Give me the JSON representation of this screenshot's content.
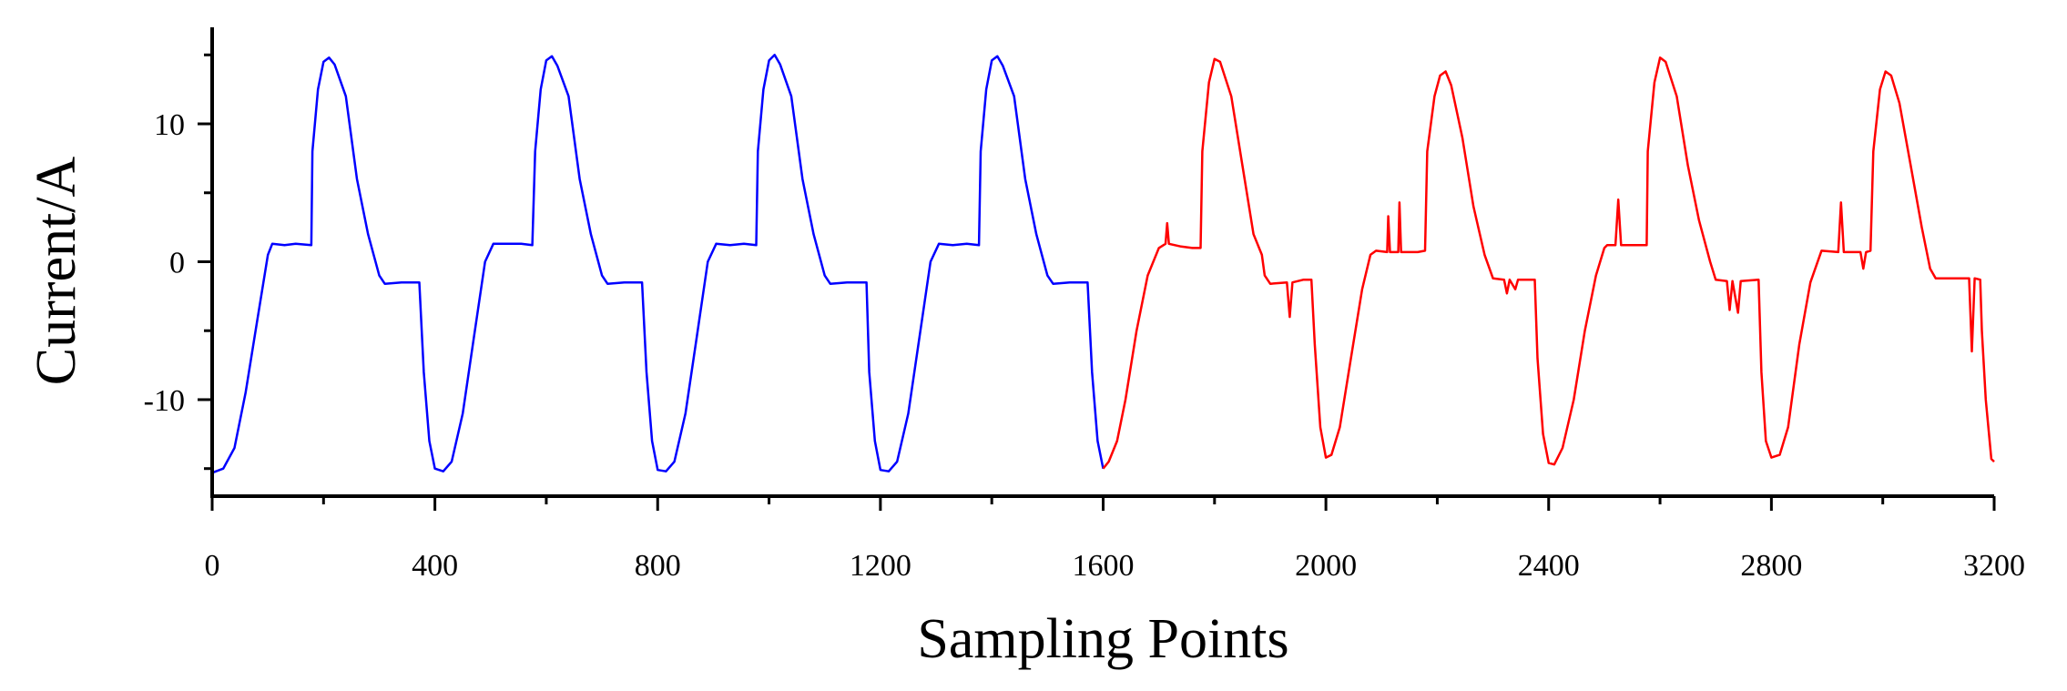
{
  "chart_data": {
    "type": "line",
    "title": "",
    "xlabel": "Sampling Points",
    "ylabel": "Current/A",
    "xlim": [
      0,
      3200
    ],
    "ylim": [
      -17,
      17
    ],
    "x_ticks": [
      0,
      400,
      800,
      1200,
      1600,
      2000,
      2400,
      2800,
      3200
    ],
    "y_ticks": [
      -10,
      0,
      10
    ],
    "grid": false,
    "legend": "none",
    "series": [
      {
        "color": "#0000ff",
        "points": [
          [
            0,
            -15.3
          ],
          [
            20,
            -15.0
          ],
          [
            40,
            -13.5
          ],
          [
            60,
            -9.5
          ],
          [
            80,
            -4.5
          ],
          [
            100,
            0.5
          ],
          [
            108,
            1.3
          ],
          [
            130,
            1.2
          ],
          [
            150,
            1.3
          ],
          [
            178,
            1.2
          ],
          [
            180,
            8.0
          ],
          [
            190,
            12.5
          ],
          [
            200,
            14.5
          ],
          [
            210,
            14.8
          ],
          [
            220,
            14.3
          ],
          [
            240,
            12.0
          ],
          [
            260,
            6.0
          ],
          [
            280,
            2.0
          ],
          [
            300,
            -1.0
          ],
          [
            310,
            -1.6
          ],
          [
            340,
            -1.5
          ],
          [
            372,
            -1.5
          ],
          [
            380,
            -8.0
          ],
          [
            390,
            -13.0
          ],
          [
            400,
            -15.0
          ],
          [
            415,
            -15.2
          ],
          [
            430,
            -14.5
          ],
          [
            450,
            -11.0
          ],
          [
            470,
            -5.5
          ],
          [
            490,
            0.0
          ],
          [
            505,
            1.3
          ],
          [
            530,
            1.3
          ],
          [
            555,
            1.3
          ],
          [
            575,
            1.2
          ],
          [
            580,
            8.0
          ],
          [
            590,
            12.5
          ],
          [
            600,
            14.6
          ],
          [
            610,
            14.9
          ],
          [
            620,
            14.2
          ],
          [
            640,
            12.0
          ],
          [
            660,
            6.0
          ],
          [
            680,
            2.0
          ],
          [
            700,
            -1.0
          ],
          [
            710,
            -1.6
          ],
          [
            740,
            -1.5
          ],
          [
            772,
            -1.5
          ],
          [
            780,
            -8.0
          ],
          [
            790,
            -13.0
          ],
          [
            800,
            -15.1
          ],
          [
            815,
            -15.2
          ],
          [
            830,
            -14.5
          ],
          [
            850,
            -11.0
          ],
          [
            870,
            -5.5
          ],
          [
            890,
            0.0
          ],
          [
            905,
            1.3
          ],
          [
            930,
            1.2
          ],
          [
            955,
            1.3
          ],
          [
            977,
            1.2
          ],
          [
            980,
            8.0
          ],
          [
            990,
            12.5
          ],
          [
            1000,
            14.6
          ],
          [
            1010,
            15.0
          ],
          [
            1020,
            14.3
          ],
          [
            1040,
            12.0
          ],
          [
            1060,
            6.0
          ],
          [
            1080,
            2.0
          ],
          [
            1100,
            -1.0
          ],
          [
            1110,
            -1.6
          ],
          [
            1140,
            -1.5
          ],
          [
            1175,
            -1.5
          ],
          [
            1180,
            -8.0
          ],
          [
            1190,
            -13.0
          ],
          [
            1200,
            -15.1
          ],
          [
            1215,
            -15.2
          ],
          [
            1230,
            -14.5
          ],
          [
            1250,
            -11.0
          ],
          [
            1270,
            -5.5
          ],
          [
            1290,
            0.0
          ],
          [
            1305,
            1.3
          ],
          [
            1330,
            1.2
          ],
          [
            1355,
            1.3
          ],
          [
            1377,
            1.2
          ],
          [
            1380,
            8.0
          ],
          [
            1390,
            12.5
          ],
          [
            1400,
            14.6
          ],
          [
            1410,
            14.9
          ],
          [
            1420,
            14.2
          ],
          [
            1440,
            12.0
          ],
          [
            1460,
            6.0
          ],
          [
            1480,
            2.0
          ],
          [
            1500,
            -1.0
          ],
          [
            1510,
            -1.6
          ],
          [
            1540,
            -1.5
          ],
          [
            1572,
            -1.5
          ],
          [
            1580,
            -8.0
          ],
          [
            1590,
            -13.0
          ],
          [
            1600,
            -15.0
          ]
        ]
      },
      {
        "color": "#ff0000",
        "points": [
          [
            1600,
            -15.0
          ],
          [
            1610,
            -14.5
          ],
          [
            1625,
            -13.0
          ],
          [
            1640,
            -10.0
          ],
          [
            1660,
            -5.0
          ],
          [
            1680,
            -1.0
          ],
          [
            1700,
            1.0
          ],
          [
            1712,
            1.3
          ],
          [
            1715,
            2.8
          ],
          [
            1718,
            1.3
          ],
          [
            1740,
            1.1
          ],
          [
            1760,
            1.0
          ],
          [
            1775,
            1.0
          ],
          [
            1778,
            8.0
          ],
          [
            1790,
            13.0
          ],
          [
            1800,
            14.7
          ],
          [
            1810,
            14.5
          ],
          [
            1830,
            12.0
          ],
          [
            1850,
            7.0
          ],
          [
            1870,
            2.0
          ],
          [
            1885,
            0.5
          ],
          [
            1890,
            -1.0
          ],
          [
            1900,
            -1.6
          ],
          [
            1930,
            -1.5
          ],
          [
            1935,
            -4.0
          ],
          [
            1940,
            -1.5
          ],
          [
            1960,
            -1.3
          ],
          [
            1974,
            -1.3
          ],
          [
            1980,
            -6.0
          ],
          [
            1990,
            -12.0
          ],
          [
            2000,
            -14.2
          ],
          [
            2010,
            -14.0
          ],
          [
            2025,
            -12.0
          ],
          [
            2045,
            -7.0
          ],
          [
            2065,
            -2.0
          ],
          [
            2080,
            0.5
          ],
          [
            2090,
            0.8
          ],
          [
            2110,
            0.7
          ],
          [
            2112,
            3.3
          ],
          [
            2115,
            0.7
          ],
          [
            2130,
            0.7
          ],
          [
            2132,
            4.3
          ],
          [
            2135,
            0.7
          ],
          [
            2165,
            0.7
          ],
          [
            2178,
            0.8
          ],
          [
            2182,
            8.0
          ],
          [
            2195,
            12.0
          ],
          [
            2205,
            13.5
          ],
          [
            2215,
            13.8
          ],
          [
            2225,
            12.8
          ],
          [
            2245,
            9.0
          ],
          [
            2265,
            4.0
          ],
          [
            2285,
            0.5
          ],
          [
            2300,
            -1.2
          ],
          [
            2320,
            -1.3
          ],
          [
            2325,
            -2.3
          ],
          [
            2330,
            -1.3
          ],
          [
            2340,
            -2.0
          ],
          [
            2345,
            -1.3
          ],
          [
            2375,
            -1.3
          ],
          [
            2380,
            -7.0
          ],
          [
            2390,
            -12.5
          ],
          [
            2400,
            -14.6
          ],
          [
            2410,
            -14.7
          ],
          [
            2425,
            -13.5
          ],
          [
            2445,
            -10.0
          ],
          [
            2465,
            -5.0
          ],
          [
            2485,
            -1.0
          ],
          [
            2500,
            1.0
          ],
          [
            2505,
            1.2
          ],
          [
            2520,
            1.2
          ],
          [
            2525,
            4.5
          ],
          [
            2530,
            1.2
          ],
          [
            2555,
            1.2
          ],
          [
            2576,
            1.2
          ],
          [
            2578,
            8.0
          ],
          [
            2590,
            13.0
          ],
          [
            2600,
            14.8
          ],
          [
            2610,
            14.5
          ],
          [
            2630,
            12.0
          ],
          [
            2650,
            7.0
          ],
          [
            2670,
            3.0
          ],
          [
            2690,
            0.0
          ],
          [
            2700,
            -1.3
          ],
          [
            2720,
            -1.4
          ],
          [
            2725,
            -3.5
          ],
          [
            2730,
            -1.4
          ],
          [
            2740,
            -3.7
          ],
          [
            2745,
            -1.4
          ],
          [
            2777,
            -1.3
          ],
          [
            2782,
            -8.0
          ],
          [
            2790,
            -13.0
          ],
          [
            2800,
            -14.2
          ],
          [
            2815,
            -14.0
          ],
          [
            2830,
            -12.0
          ],
          [
            2850,
            -6.0
          ],
          [
            2870,
            -1.5
          ],
          [
            2890,
            0.8
          ],
          [
            2920,
            0.7
          ],
          [
            2925,
            4.3
          ],
          [
            2930,
            0.7
          ],
          [
            2960,
            0.7
          ],
          [
            2965,
            -0.5
          ],
          [
            2970,
            0.7
          ],
          [
            2978,
            0.8
          ],
          [
            2983,
            8.0
          ],
          [
            2995,
            12.5
          ],
          [
            3005,
            13.8
          ],
          [
            3015,
            13.5
          ],
          [
            3030,
            11.5
          ],
          [
            3050,
            7.0
          ],
          [
            3070,
            2.5
          ],
          [
            3085,
            -0.5
          ],
          [
            3095,
            -1.2
          ],
          [
            3130,
            -1.2
          ],
          [
            3155,
            -1.2
          ],
          [
            3160,
            -6.5
          ],
          [
            3165,
            -1.2
          ],
          [
            3175,
            -1.3
          ],
          [
            3178,
            -5.0
          ],
          [
            3185,
            -10.0
          ],
          [
            3195,
            -14.3
          ],
          [
            3200,
            -14.5
          ]
        ]
      }
    ]
  }
}
